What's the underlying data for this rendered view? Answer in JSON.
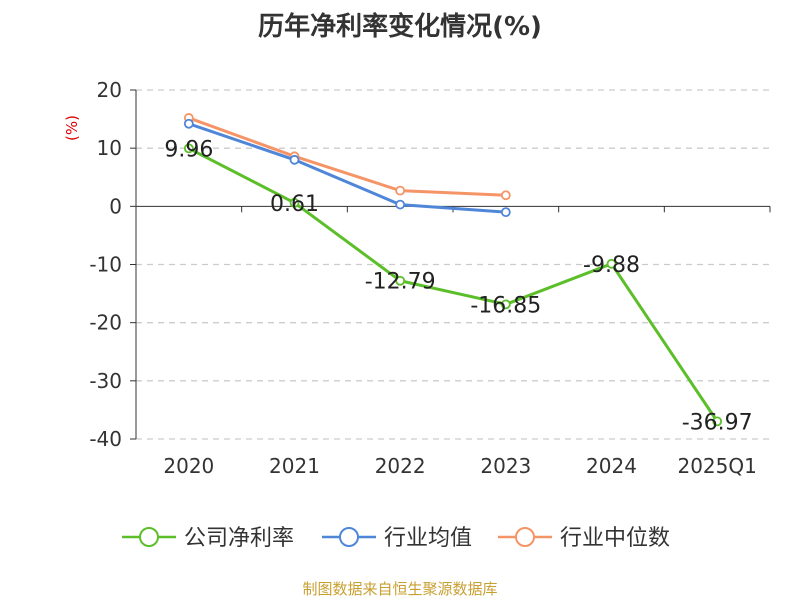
{
  "chart_data": {
    "type": "line",
    "title": "历年净利率变化情况(%)",
    "ylabel": "(%)",
    "xlabel": "",
    "categories": [
      "2020",
      "2021",
      "2022",
      "2023",
      "2024",
      "2025Q1"
    ],
    "ylim": [
      -40,
      20
    ],
    "yticks": [
      20,
      10,
      0,
      -10,
      -20,
      -30,
      -40
    ],
    "grid": true,
    "legend_position": "bottom",
    "series": [
      {
        "name": "公司净利率",
        "color": "#5cbf2a",
        "values": [
          9.96,
          0.61,
          -12.79,
          -16.85,
          -9.88,
          -36.97
        ],
        "labels": [
          "9.96",
          "0.61",
          "-12.79",
          "-16.85",
          "-9.88",
          "-36.97"
        ]
      },
      {
        "name": "行业均值",
        "color": "#4f86d8",
        "values": [
          14.2,
          8.0,
          0.3,
          -1.0,
          null,
          null
        ]
      },
      {
        "name": "行业中位数",
        "color": "#f59466",
        "values": [
          15.2,
          8.6,
          2.7,
          1.9,
          null,
          null
        ]
      }
    ]
  },
  "source_note": "制图数据来自恒生聚源数据库",
  "colors": {
    "axis": "#333333",
    "grid": "#cccccc",
    "ylabel": "#dd0000"
  }
}
